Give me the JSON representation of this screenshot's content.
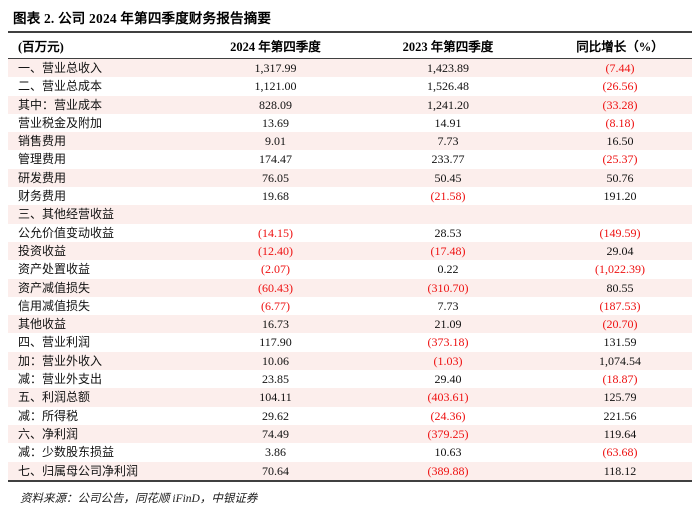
{
  "title": "图表 2. 公司 2024 年第四季度财务报告摘要",
  "table": {
    "columns": [
      "(百万元)",
      "2024 年第四季度",
      "2023 年第四季度",
      "同比增长（%）"
    ],
    "rows": [
      {
        "label": "一、营业总收入",
        "q2024": "1,317.99",
        "q2023": "1,423.89",
        "yoy": "(7.44)"
      },
      {
        "label": "二、营业总成本",
        "q2024": "1,121.00",
        "q2023": "1,526.48",
        "yoy": "(26.56)"
      },
      {
        "label": "其中：营业成本",
        "q2024": "828.09",
        "q2023": "1,241.20",
        "yoy": "(33.28)"
      },
      {
        "label": "营业税金及附加",
        "q2024": "13.69",
        "q2023": "14.91",
        "yoy": "(8.18)"
      },
      {
        "label": "销售费用",
        "q2024": "9.01",
        "q2023": "7.73",
        "yoy": "16.50"
      },
      {
        "label": "管理费用",
        "q2024": "174.47",
        "q2023": "233.77",
        "yoy": "(25.37)"
      },
      {
        "label": "研发费用",
        "q2024": "76.05",
        "q2023": "50.45",
        "yoy": "50.76"
      },
      {
        "label": "财务费用",
        "q2024": "19.68",
        "q2023": "(21.58)",
        "yoy": "191.20"
      },
      {
        "label": "三、其他经营收益",
        "q2024": "",
        "q2023": "",
        "yoy": ""
      },
      {
        "label": "公允价值变动收益",
        "q2024": "(14.15)",
        "q2023": "28.53",
        "yoy": "(149.59)"
      },
      {
        "label": "投资收益",
        "q2024": "(12.40)",
        "q2023": "(17.48)",
        "yoy": "29.04"
      },
      {
        "label": "资产处置收益",
        "q2024": "(2.07)",
        "q2023": "0.22",
        "yoy": "(1,022.39)"
      },
      {
        "label": "资产减值损失",
        "q2024": "(60.43)",
        "q2023": "(310.70)",
        "yoy": "80.55"
      },
      {
        "label": "信用减值损失",
        "q2024": "(6.77)",
        "q2023": "7.73",
        "yoy": "(187.53)"
      },
      {
        "label": "其他收益",
        "q2024": "16.73",
        "q2023": "21.09",
        "yoy": "(20.70)"
      },
      {
        "label": "四、营业利润",
        "q2024": "117.90",
        "q2023": "(373.18)",
        "yoy": "131.59"
      },
      {
        "label": "加：营业外收入",
        "q2024": "10.06",
        "q2023": "(1.03)",
        "yoy": "1,074.54"
      },
      {
        "label": "减：营业外支出",
        "q2024": "23.85",
        "q2023": "29.40",
        "yoy": "(18.87)"
      },
      {
        "label": "五、利润总额",
        "q2024": "104.11",
        "q2023": "(403.61)",
        "yoy": "125.79"
      },
      {
        "label": "减：所得税",
        "q2024": "29.62",
        "q2023": "(24.36)",
        "yoy": "221.56"
      },
      {
        "label": "六、净利润",
        "q2024": "74.49",
        "q2023": "(379.25)",
        "yoy": "119.64"
      },
      {
        "label": "减：少数股东损益",
        "q2024": "3.86",
        "q2023": "10.63",
        "yoy": "(63.68)"
      },
      {
        "label": "七、归属母公司净利润",
        "q2024": "70.64",
        "q2023": "(389.88)",
        "yoy": "118.12"
      }
    ]
  },
  "source": "资料来源：公司公告，同花顺 iFinD，中银证券",
  "colors": {
    "negative_text": "#ee1111",
    "row_stripe": "#fceeec",
    "rule": "#404040"
  }
}
